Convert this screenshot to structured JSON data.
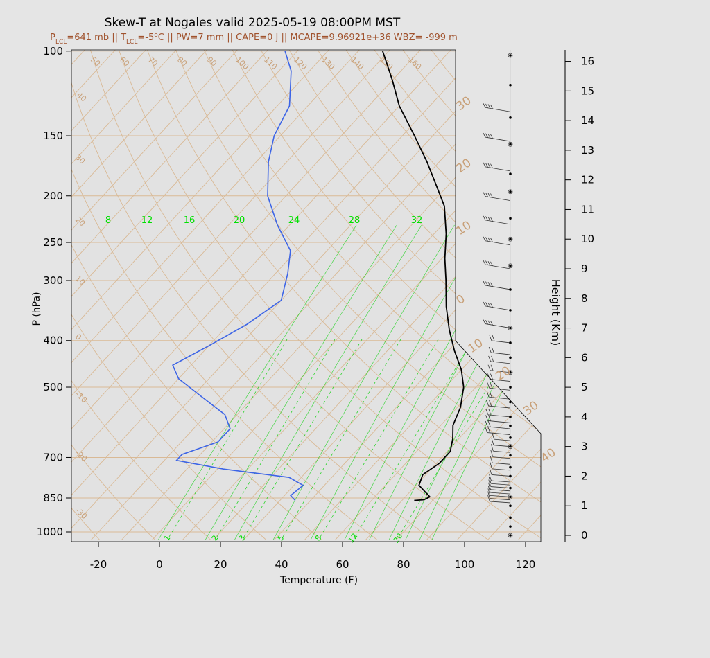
{
  "title": "Skew-T at Nogales valid 2025-05-19 08:00PM MST",
  "subtitle": {
    "parts": [
      "P",
      "LCL",
      "=641 mb || T",
      "LCL",
      "=-5",
      "o",
      "C || PW=7 mm || CAPE=0 J || MCAPE=9.96921e+36 WBZ= -999 m"
    ]
  },
  "colors": {
    "background": "#e5e5e5",
    "isotherm": "#d9b995",
    "adiabat": "#d9b995",
    "isobar": "#d9b995",
    "mixing_ratio": "#00d000",
    "temperature": "#000000",
    "dewpoint": "#3c64e6",
    "wind_barb": "#333333",
    "subtitle": "#a0522d"
  },
  "chart_data": {
    "type": "skew-t",
    "xlabel": "Temperature (F)",
    "ylabel": "P (hPa)",
    "y2label": "Height (Km)",
    "xlim": [
      -28,
      125
    ],
    "ylim": [
      1040,
      100
    ],
    "x_ticks": [
      -20,
      0,
      20,
      40,
      60,
      80,
      100,
      120
    ],
    "y_ticks": [
      100,
      150,
      200,
      250,
      300,
      400,
      500,
      700,
      850,
      1000
    ],
    "height_ticks": [
      0,
      1,
      2,
      3,
      4,
      5,
      6,
      7,
      8,
      9,
      10,
      11,
      12,
      13,
      14,
      15,
      16
    ],
    "isotherm_labels": [
      -30,
      -20,
      -10,
      0,
      10,
      20,
      30,
      40,
      50,
      60,
      70,
      80,
      90,
      100,
      110,
      120,
      130,
      140,
      150,
      160
    ],
    "mixing_ratio_top_labels": [
      8,
      12,
      16,
      20,
      24,
      28,
      32
    ],
    "mixing_ratio_bottom_labels": [
      1,
      2,
      3,
      5,
      8,
      12,
      20
    ],
    "temperature": {
      "name": "Temperature",
      "points": [
        {
          "p": 860,
          "t": 74
        },
        {
          "p": 857,
          "t": 77
        },
        {
          "p": 845,
          "t": 78
        },
        {
          "p": 800,
          "t": 71
        },
        {
          "p": 760,
          "t": 69
        },
        {
          "p": 720,
          "t": 71
        },
        {
          "p": 680,
          "t": 71
        },
        {
          "p": 640,
          "t": 68
        },
        {
          "p": 600,
          "t": 64
        },
        {
          "p": 550,
          "t": 61
        },
        {
          "p": 500,
          "t": 56
        },
        {
          "p": 460,
          "t": 50
        },
        {
          "p": 420,
          "t": 42
        },
        {
          "p": 380,
          "t": 34
        },
        {
          "p": 340,
          "t": 26
        },
        {
          "p": 300,
          "t": 18
        },
        {
          "p": 270,
          "t": 11
        },
        {
          "p": 240,
          "t": 4
        },
        {
          "p": 210,
          "t": -5
        },
        {
          "p": 190,
          "t": -14
        },
        {
          "p": 170,
          "t": -24
        },
        {
          "p": 150,
          "t": -36
        },
        {
          "p": 130,
          "t": -50
        },
        {
          "p": 115,
          "t": -60
        },
        {
          "p": 100,
          "t": -72
        }
      ]
    },
    "dewpoint": {
      "name": "Dewpoint",
      "points": [
        {
          "p": 860,
          "t": 35
        },
        {
          "p": 840,
          "t": 32
        },
        {
          "p": 800,
          "t": 33
        },
        {
          "p": 770,
          "t": 26
        },
        {
          "p": 740,
          "t": 2
        },
        {
          "p": 710,
          "t": -16
        },
        {
          "p": 690,
          "t": -16
        },
        {
          "p": 650,
          "t": -8
        },
        {
          "p": 610,
          "t": -8
        },
        {
          "p": 570,
          "t": -14
        },
        {
          "p": 520,
          "t": -28
        },
        {
          "p": 480,
          "t": -40
        },
        {
          "p": 450,
          "t": -46
        },
        {
          "p": 410,
          "t": -40
        },
        {
          "p": 370,
          "t": -34
        },
        {
          "p": 330,
          "t": -30
        },
        {
          "p": 290,
          "t": -36
        },
        {
          "p": 260,
          "t": -42
        },
        {
          "p": 230,
          "t": -54
        },
        {
          "p": 200,
          "t": -66
        },
        {
          "p": 170,
          "t": -76
        },
        {
          "p": 150,
          "t": -82
        },
        {
          "p": 130,
          "t": -86
        },
        {
          "p": 110,
          "t": -96
        },
        {
          "p": 100,
          "t": -104
        }
      ]
    },
    "height_levels_km": [
      0,
      0.3,
      0.6,
      1.0,
      1.3,
      1.6,
      2.0,
      2.3,
      2.7,
      3.0,
      3.3,
      3.7,
      4.0,
      4.5,
      5.0,
      5.5,
      6.0,
      6.5,
      7.0,
      7.6,
      8.3,
      9.1,
      10.0,
      10.7,
      11.6,
      12.2,
      13.2,
      14.1,
      15.2,
      16.2
    ],
    "height_open_circles_km": [
      0,
      1.3,
      3.0,
      5.5,
      7.0,
      9.1,
      10.0,
      11.6,
      13.2,
      16.2
    ],
    "wind_barb_heights_km": [
      1.1,
      1.2,
      1.3,
      1.4,
      1.5,
      1.6,
      1.7,
      1.8,
      2.0,
      2.2,
      2.4,
      2.6,
      2.8,
      3.0,
      3.2,
      3.4,
      3.6,
      3.8,
      4.0,
      4.3,
      4.6,
      4.9,
      5.2,
      5.5,
      5.8,
      6.1,
      6.5,
      7.0,
      7.6,
      8.3,
      9.0,
      9.8,
      10.5,
      11.3,
      12.3,
      13.3,
      14.3
    ]
  }
}
